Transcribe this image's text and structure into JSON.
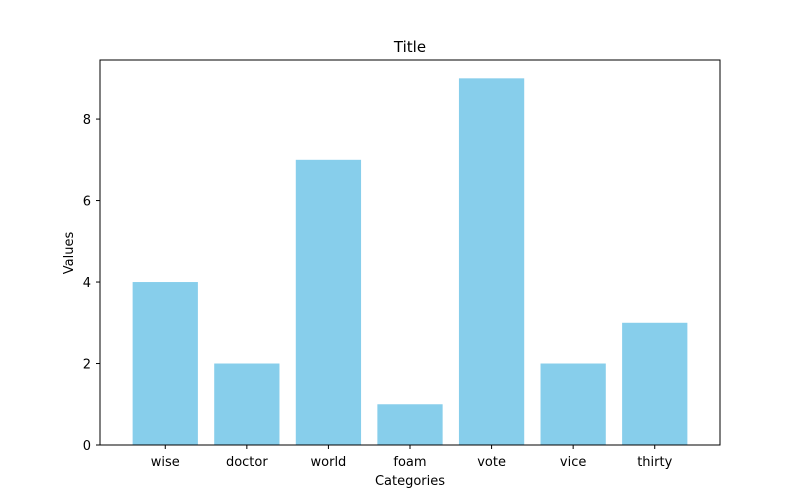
{
  "chart_data": {
    "type": "bar",
    "title": "Title",
    "xlabel": "Categories",
    "ylabel": "Values",
    "categories": [
      "wise",
      "doctor",
      "world",
      "foam",
      "vote",
      "vice",
      "thirty"
    ],
    "values": [
      4,
      2,
      7,
      1,
      9,
      2,
      3
    ],
    "ylim": [
      0,
      9.45
    ],
    "yticks": [
      0,
      2,
      4,
      6,
      8
    ],
    "bar_color": "#87CEEB",
    "grid": false,
    "legend": "none"
  }
}
